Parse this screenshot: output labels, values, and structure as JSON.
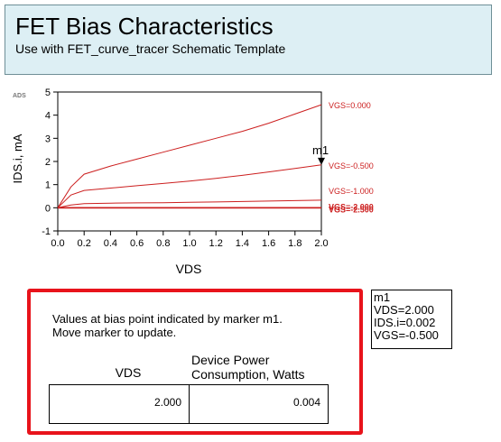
{
  "header": {
    "title": "FET Bias Characteristics",
    "subtitle": "Use with FET_curve_tracer Schematic Template"
  },
  "ads_tag": "ADS",
  "chart_data": {
    "type": "line",
    "xlabel": "VDS",
    "ylabel": "IDS.i, mA",
    "xlim": [
      0,
      2
    ],
    "ylim": [
      -1,
      5
    ],
    "xticks": [
      "0.0",
      "0.2",
      "0.4",
      "0.6",
      "0.8",
      "1.0",
      "1.2",
      "1.4",
      "1.6",
      "1.8",
      "2.0"
    ],
    "yticks": [
      "-1",
      "0",
      "1",
      "2",
      "3",
      "4",
      "5"
    ],
    "x": [
      0,
      0.1,
      0.2,
      0.4,
      0.6,
      0.8,
      1.0,
      1.2,
      1.4,
      1.6,
      1.8,
      2.0
    ],
    "series": [
      {
        "name": "VGS=0.000",
        "values": [
          0,
          0.9,
          1.45,
          1.8,
          2.1,
          2.4,
          2.7,
          3.0,
          3.3,
          3.65,
          4.05,
          4.45
        ]
      },
      {
        "name": "VGS=-0.500",
        "values": [
          0,
          0.55,
          0.75,
          0.85,
          0.95,
          1.05,
          1.15,
          1.27,
          1.4,
          1.55,
          1.7,
          1.85
        ]
      },
      {
        "name": "VGS=-1.000",
        "values": [
          0,
          0.12,
          0.18,
          0.2,
          0.21,
          0.22,
          0.24,
          0.25,
          0.27,
          0.29,
          0.31,
          0.33
        ]
      },
      {
        "name": "VGS=-2.000",
        "values": [
          0,
          0,
          0,
          0,
          0,
          0,
          0,
          0,
          0,
          0,
          0,
          0
        ]
      },
      {
        "name": "VGS=-2.500",
        "values": [
          0,
          0,
          0,
          0,
          0,
          0,
          0,
          0,
          0,
          0,
          0,
          0
        ]
      }
    ],
    "marker": {
      "label": "m1",
      "x": 2.0,
      "y": 1.85
    },
    "line_color": "#cc1f1f"
  },
  "marker_readout": {
    "lines": [
      "m1",
      "VDS=2.000",
      "IDS.i=0.002",
      "VGS=-0.500"
    ]
  },
  "bias_panel": {
    "note_line1": "Values at bias point indicated by marker m1.",
    "note_line2": "Move marker to update.",
    "col_vds": "VDS",
    "col_power_line1": "Device Power",
    "col_power_line2": "Consumption, Watts",
    "vds_value": "2.000",
    "power_value": "0.004",
    "border_color": "#e8131b"
  }
}
